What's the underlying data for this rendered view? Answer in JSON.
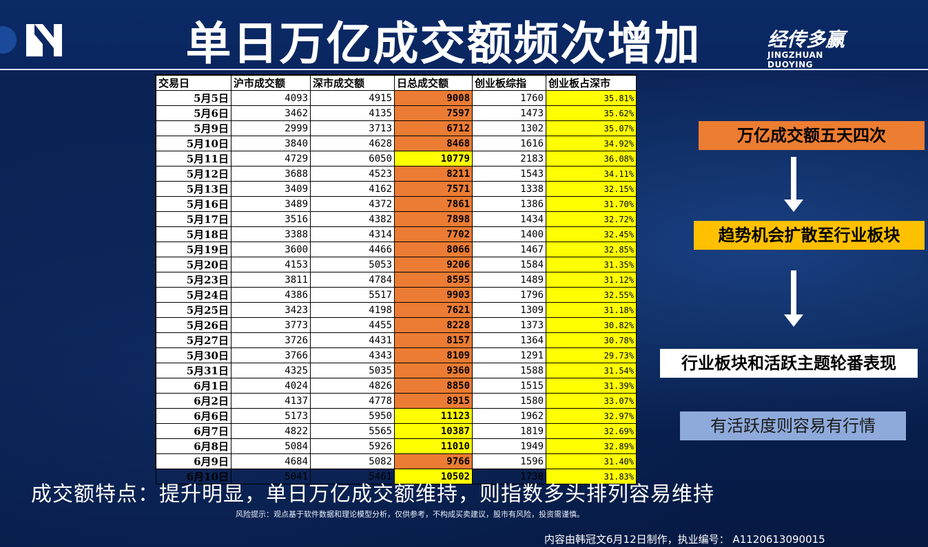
{
  "title": "单日万亿成交额频次增加",
  "brand": {
    "cn": "经传多赢",
    "en": "JINGZHUAN DUOYING"
  },
  "table": {
    "headers": [
      "交易日",
      "沪市成交额",
      "深市成交额",
      "日总成交额",
      "创业板综指",
      "创业板占深市"
    ],
    "rows": [
      [
        "5月5日",
        "4093",
        "4915",
        "9008",
        "1760",
        "35.81%",
        "o"
      ],
      [
        "5月6日",
        "3462",
        "4135",
        "7597",
        "1473",
        "35.62%",
        "o"
      ],
      [
        "5月9日",
        "2999",
        "3713",
        "6712",
        "1302",
        "35.07%",
        "o"
      ],
      [
        "5月10日",
        "3840",
        "4628",
        "8468",
        "1616",
        "34.92%",
        "o"
      ],
      [
        "5月11日",
        "4729",
        "6050",
        "10779",
        "2183",
        "36.08%",
        "y"
      ],
      [
        "5月12日",
        "3688",
        "4523",
        "8211",
        "1543",
        "34.11%",
        "o"
      ],
      [
        "5月13日",
        "3409",
        "4162",
        "7571",
        "1338",
        "32.15%",
        "o"
      ],
      [
        "5月16日",
        "3489",
        "4372",
        "7861",
        "1386",
        "31.70%",
        "o"
      ],
      [
        "5月17日",
        "3516",
        "4382",
        "7898",
        "1434",
        "32.72%",
        "o"
      ],
      [
        "5月18日",
        "3388",
        "4314",
        "7702",
        "1400",
        "32.45%",
        "o"
      ],
      [
        "5月19日",
        "3600",
        "4466",
        "8066",
        "1467",
        "32.85%",
        "o"
      ],
      [
        "5月20日",
        "4153",
        "5053",
        "9206",
        "1584",
        "31.35%",
        "o"
      ],
      [
        "5月23日",
        "3811",
        "4784",
        "8595",
        "1489",
        "31.12%",
        "o"
      ],
      [
        "5月24日",
        "4386",
        "5517",
        "9903",
        "1796",
        "32.55%",
        "o"
      ],
      [
        "5月25日",
        "3423",
        "4198",
        "7621",
        "1309",
        "31.18%",
        "o"
      ],
      [
        "5月26日",
        "3773",
        "4455",
        "8228",
        "1373",
        "30.82%",
        "o"
      ],
      [
        "5月27日",
        "3726",
        "4431",
        "8157",
        "1364",
        "30.78%",
        "o"
      ],
      [
        "5月30日",
        "3766",
        "4343",
        "8109",
        "1291",
        "29.73%",
        "o"
      ],
      [
        "5月31日",
        "4325",
        "5035",
        "9360",
        "1588",
        "31.54%",
        "o"
      ],
      [
        "6月1日",
        "4024",
        "4826",
        "8850",
        "1515",
        "31.39%",
        "o"
      ],
      [
        "6月2日",
        "4137",
        "4778",
        "8915",
        "1580",
        "33.07%",
        "o"
      ],
      [
        "6月6日",
        "5173",
        "5950",
        "11123",
        "1962",
        "32.97%",
        "y"
      ],
      [
        "6月7日",
        "4822",
        "5565",
        "10387",
        "1819",
        "32.69%",
        "y"
      ],
      [
        "6月8日",
        "5084",
        "5926",
        "11010",
        "1949",
        "32.89%",
        "y"
      ],
      [
        "6月9日",
        "4684",
        "5082",
        "9766",
        "1596",
        "31.40%",
        "o"
      ],
      [
        "6月10日",
        "5041",
        "5461",
        "10502",
        "1738",
        "31.83%",
        "y"
      ]
    ]
  },
  "flow": {
    "step1": "万亿成交额五天四次",
    "step2": "趋势机会扩散至行业板块",
    "step3": "行业板块和活跃主题轮番表现",
    "step4": "有活跃度则容易有行情"
  },
  "caption": "成交额特点：提升明显，单日万亿成交额维持，则指数多头排列容易维持",
  "risk": "风险提示：观点基于软件数据和理论模型分析，仅供参考，不构成买卖建议，股市有风险，投资需谨慎。",
  "footer": "内容由韩冠文6月12日制作，执业编号： A1120613090015",
  "colors": {
    "orange": "#ec7c33",
    "yellow": "#ffff00",
    "navy": "#0a2356"
  }
}
